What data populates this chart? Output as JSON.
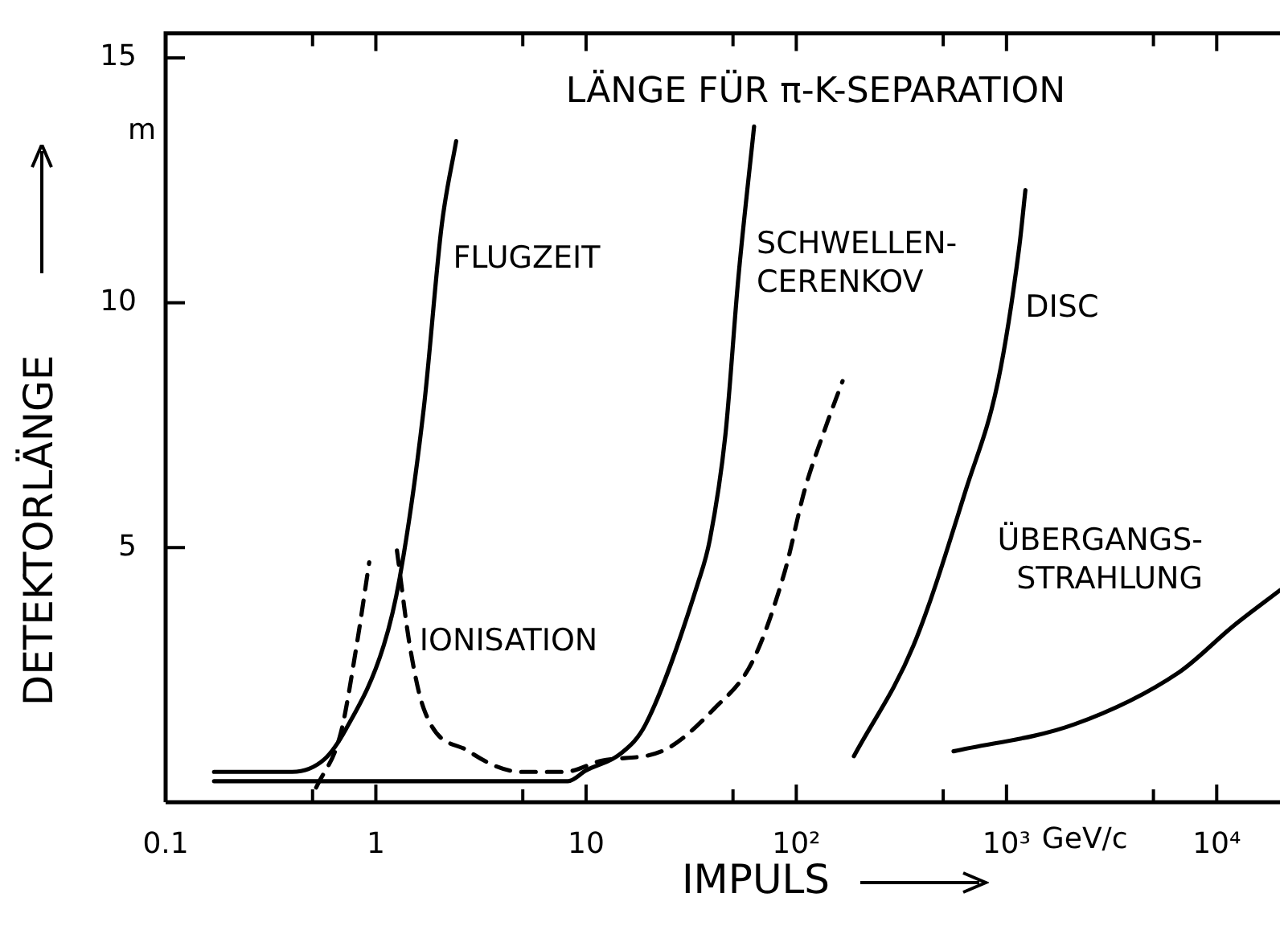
{
  "chart_data": {
    "type": "line",
    "title": "LÄNGE FÜR π-K-SEPARATION",
    "xlabel": "IMPULS",
    "ylabel": "DETEKTORLÄNGE",
    "log": "x",
    "marker": "none",
    "xlim": [
      0.1,
      20000
    ],
    "ylim": [
      -0.2,
      15.5
    ],
    "xticks": [
      0.1,
      {
        "value": 0.5,
        "label": null
      },
      1,
      {
        "value": 5,
        "label": null
      },
      10,
      {
        "value": 50,
        "label": null
      },
      {
        "value": 100,
        "label": "10²"
      },
      {
        "value": 500,
        "label": null
      },
      {
        "value": 1000,
        "label": "10³"
      },
      {
        "value": 5000,
        "label": null
      },
      {
        "value": 10000,
        "label": "10⁴"
      }
    ],
    "yticks": [
      5,
      10,
      15
    ],
    "series": [
      {
        "name": "FLUGZEIT",
        "color": "#000000",
        "line_style": "solid",
        "x": [
          0.17,
          0.4,
          0.57,
          0.72,
          1.09,
          1.3,
          1.69,
          2.06,
          2.41
        ],
        "values": [
          0.42,
          0.42,
          0.68,
          1.29,
          3.0,
          4.39,
          7.84,
          11.6,
          13.3
        ]
      },
      {
        "name": "SCHWELLEN-\nCERENKOV",
        "color": "#000000",
        "line_style": "solid",
        "x": [
          0.17,
          8.2,
          10,
          14.7,
          19.2,
          34.2,
          38.8,
          46,
          53,
          63
        ],
        "values": [
          0.23,
          0.23,
          0.45,
          0.8,
          1.39,
          4.3,
          5.16,
          7.3,
          10.5,
          13.6
        ]
      },
      {
        "color": "#000000",
        "line_style": "dashed",
        "x": [
          0.52,
          0.68,
          0.81,
          0.93
        ],
        "values": [
          0.1,
          1.2,
          3.0,
          4.7
        ]
      },
      {
        "name": "IONISATION",
        "color": "#000000",
        "line_style": "dashed",
        "x": [
          1.26,
          1.45,
          1.69,
          2.77,
          4.95,
          7.9,
          11.9,
          22.9,
          40.7,
          62,
          88,
          110,
          139,
          166
        ],
        "values": [
          4.94,
          3.0,
          1.71,
          0.84,
          0.42,
          0.42,
          0.65,
          0.84,
          1.71,
          2.68,
          4.5,
          6.2,
          7.5,
          8.4
        ]
      },
      {
        "name": "DISC",
        "color": "#000000",
        "line_style": "solid",
        "x": [
          188,
          361,
          643,
          912,
          1147,
          1230
        ],
        "values": [
          0.74,
          3.0,
          6.2,
          8.4,
          11.1,
          12.3
        ]
      },
      {
        "name": "ÜBERGANGS-\nSTRAHLUNG",
        "color": "#000000",
        "line_style": "solid",
        "x": [
          560,
          2100,
          6600,
          12000,
          20000
        ],
        "values": [
          0.84,
          1.39,
          2.45,
          3.4,
          4.13
        ]
      }
    ],
    "annotations": [
      "m",
      "GeV/c"
    ]
  }
}
